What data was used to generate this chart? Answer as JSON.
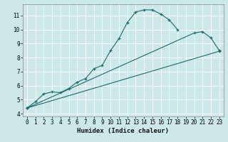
{
  "xlabel": "Humidex (Indice chaleur)",
  "background_color": "#cce8e8",
  "grid_color": "#ffffff",
  "line_color": "#1a6b6b",
  "xlim": [
    -0.5,
    23.5
  ],
  "ylim": [
    3.8,
    11.8
  ],
  "xticks": [
    0,
    1,
    2,
    3,
    4,
    5,
    6,
    7,
    8,
    9,
    10,
    11,
    12,
    13,
    14,
    15,
    16,
    17,
    18,
    19,
    20,
    21,
    22,
    23
  ],
  "yticks": [
    4,
    5,
    6,
    7,
    8,
    9,
    10,
    11
  ],
  "line1_x": [
    0,
    1,
    2,
    3,
    4,
    5,
    6,
    7,
    8,
    9,
    10,
    11,
    12,
    13,
    14,
    15,
    16,
    17,
    18
  ],
  "line1_y": [
    4.4,
    4.85,
    5.4,
    5.55,
    5.5,
    5.8,
    6.25,
    6.5,
    7.2,
    7.45,
    8.5,
    9.35,
    10.5,
    11.25,
    11.4,
    11.4,
    11.1,
    10.7,
    10.0
  ],
  "line2_x": [
    0,
    20,
    21,
    22,
    23
  ],
  "line2_y": [
    4.4,
    9.75,
    9.85,
    9.4,
    8.5
  ],
  "line3_x": [
    0,
    23
  ],
  "line3_y": [
    4.4,
    8.45
  ]
}
